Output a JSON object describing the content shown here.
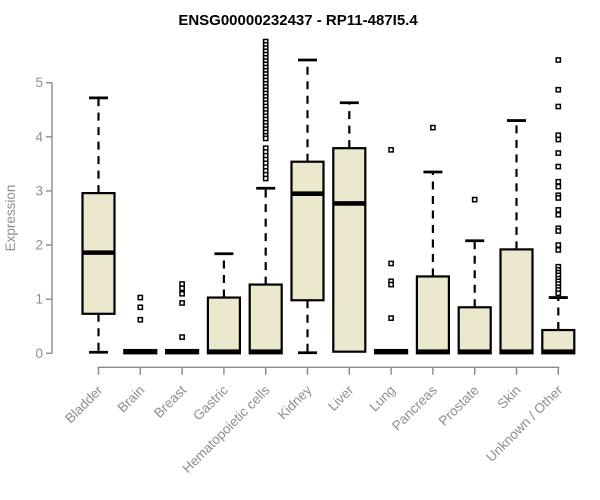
{
  "chart_data": {
    "type": "boxplot",
    "title": "ENSG00000232437 - RP11-487I5.4",
    "ylabel": "Expression",
    "xlabel": "",
    "ylim": [
      0,
      5
    ],
    "yticks": [
      0,
      1,
      2,
      3,
      4,
      5
    ],
    "grid": false,
    "legend": "none",
    "categories": [
      "Bladder",
      "Brain",
      "Breast",
      "Gastric",
      "Hematopoietic cells",
      "Kidney",
      "Liver",
      "Lung",
      "Pancreas",
      "Prostate",
      "Skin",
      "Unknown / Other"
    ],
    "series": [
      {
        "category": "Bladder",
        "low": 0.02,
        "q1": 0.73,
        "median": 1.86,
        "q3": 2.96,
        "high": 4.72,
        "outliers": []
      },
      {
        "category": "Brain",
        "low": 0,
        "q1": 0,
        "median": 0.03,
        "q3": 0.06,
        "high": 0.06,
        "outliers": [
          1.03,
          0.85,
          0.62
        ]
      },
      {
        "category": "Breast",
        "low": 0,
        "q1": 0,
        "median": 0.03,
        "q3": 0.06,
        "high": 0.06,
        "outliers": [
          1.28,
          1.2,
          1.1,
          0.93,
          0.3
        ]
      },
      {
        "category": "Gastric",
        "low": 0,
        "q1": 0,
        "median": 0.03,
        "q3": 1.03,
        "high": 1.84,
        "outliers": []
      },
      {
        "category": "Hematopoietic cells",
        "low": 0,
        "q1": 0,
        "median": 0.03,
        "q3": 1.27,
        "high": 3.05,
        "outliers": [
          5.76,
          5.7,
          5.64,
          5.58,
          5.52,
          5.46,
          5.4,
          5.34,
          5.28,
          5.22,
          5.16,
          5.1,
          5.04,
          4.98,
          4.92,
          4.86,
          4.8,
          4.74,
          4.68,
          4.62,
          4.56,
          4.5,
          4.44,
          4.38,
          4.32,
          4.26,
          4.2,
          4.14,
          4.08,
          4.02,
          3.97,
          3.79,
          3.72,
          3.65,
          3.58,
          3.51,
          3.44,
          3.37,
          3.3,
          3.23
        ]
      },
      {
        "category": "Kidney",
        "low": 0.01,
        "q1": 0.98,
        "median": 2.95,
        "q3": 3.54,
        "high": 5.42,
        "outliers": []
      },
      {
        "category": "Liver",
        "low": 0,
        "q1": 0.03,
        "median": 2.77,
        "q3": 3.79,
        "high": 4.63,
        "outliers": []
      },
      {
        "category": "Lung",
        "low": 0,
        "q1": 0,
        "median": 0.03,
        "q3": 0.06,
        "high": 0.06,
        "outliers": [
          3.76,
          1.66,
          1.33,
          1.27,
          0.65
        ]
      },
      {
        "category": "Pancreas",
        "low": 0,
        "q1": 0,
        "median": 0.03,
        "q3": 1.42,
        "high": 3.35,
        "outliers": [
          4.17
        ]
      },
      {
        "category": "Prostate",
        "low": 0,
        "q1": 0,
        "median": 0.03,
        "q3": 0.85,
        "high": 2.08,
        "outliers": [
          2.84
        ]
      },
      {
        "category": "Skin",
        "low": 0,
        "q1": 0,
        "median": 0.03,
        "q3": 1.92,
        "high": 4.3,
        "outliers": []
      },
      {
        "category": "Unknown / Other",
        "low": 0,
        "q1": 0,
        "median": 0.03,
        "q3": 0.43,
        "high": 1.03,
        "outliers": [
          5.42,
          4.87,
          4.56,
          4.03,
          3.95,
          3.7,
          3.45,
          3.17,
          3.08,
          2.92,
          2.87,
          2.65,
          2.56,
          2.31,
          2.26,
          2.0,
          1.91,
          1.6,
          1.54,
          1.49,
          1.44,
          1.38,
          1.33,
          1.28,
          1.22,
          1.17,
          1.11
        ]
      }
    ]
  },
  "colors": {
    "box_fill": "#ece8cd",
    "box_stroke": "#000000",
    "median": "#000000",
    "whisker": "#000000",
    "outlier_fill": "#ffffff",
    "outlier_stroke": "#000000",
    "axis": "#8a8a8a",
    "tick_text": "#8e8e8e",
    "title_text": "#000000",
    "background": "#ffffff"
  }
}
